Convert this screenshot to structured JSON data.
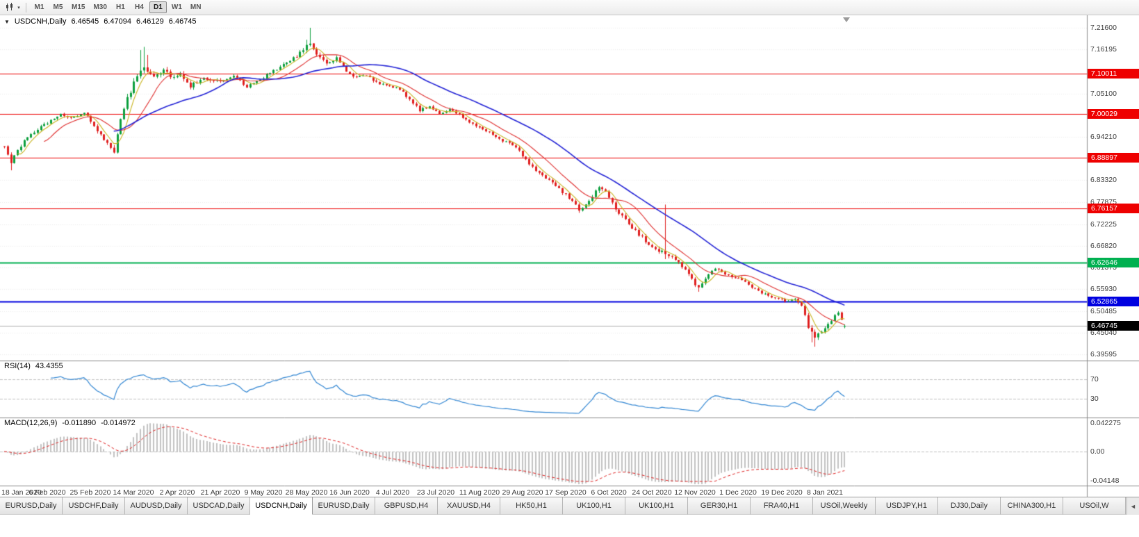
{
  "toolbar": {
    "timeframes": [
      "M1",
      "M5",
      "M15",
      "M30",
      "H1",
      "H4",
      "D1",
      "W1",
      "MN"
    ],
    "active_timeframe": "D1",
    "dropdown_icon": "▾"
  },
  "tabs": {
    "items": [
      "EURUSD,Daily",
      "USDCHF,Daily",
      "AUDUSD,Daily",
      "USDCAD,Daily",
      "USDCNH,Daily",
      "EURUSD,Daily",
      "GBPUSD,H4",
      "XAUUSD,H4",
      "HK50,H1",
      "UK100,H1",
      "UK100,H1",
      "GER30,H1",
      "FRA40,H1",
      "USOil,Weekly",
      "USDJPY,H1",
      "DJ30,Daily",
      "CHINA300,H1",
      "USOil,W"
    ],
    "active_index": 4,
    "scroll_left_icon": "◄"
  },
  "chart_data": {
    "type": "candlestick",
    "symbol": "USDCNH",
    "timeframe": "Daily",
    "title": {
      "collapse_icon": "▼",
      "symbol_label": "USDCNH,Daily",
      "open": "6.46545",
      "high": "6.47094",
      "low": "6.46129",
      "close": "6.46745"
    },
    "bars": 254,
    "ylim": [
      6.3802,
      7.2474
    ],
    "y_ticks": [
      "7.21600",
      "7.16195",
      "7.05100",
      "6.94210",
      "6.83320",
      "6.77875",
      "6.72225",
      "6.66820",
      "6.61375",
      "6.55930",
      "6.50485",
      "6.45040",
      "6.39595"
    ],
    "x_ticks": [
      "18 Jan 2020",
      "6 Feb 2020",
      "25 Feb 2020",
      "14 Mar 2020",
      "2 Apr 2020",
      "21 Apr 2020",
      "9 May 2020",
      "28 May 2020",
      "16 Jun 2020",
      "4 Jul 2020",
      "23 Jul 2020",
      "11 Aug 2020",
      "29 Aug 2020",
      "17 Sep 2020",
      "6 Oct 2020",
      "24 Oct 2020",
      "12 Nov 2020",
      "1 Dec 2020",
      "19 Dec 2020",
      "8 Jan 2021"
    ],
    "x_tick_indices": [
      0,
      13,
      26,
      39,
      52,
      65,
      78,
      91,
      104,
      117,
      130,
      143,
      156,
      169,
      182,
      195,
      208,
      221,
      234,
      247
    ],
    "hlines": [
      {
        "label": "7.10011",
        "value": 7.10011,
        "color": "#ee0000",
        "width": 1
      },
      {
        "label": "7.00029",
        "value": 7.00029,
        "color": "#ee0000",
        "width": 1
      },
      {
        "label": "6.88897",
        "value": 6.88897,
        "color": "#ee0000",
        "width": 1
      },
      {
        "label": "6.76157",
        "value": 6.76157,
        "color": "#ee0000",
        "width": 1
      },
      {
        "label": "6.62646",
        "value": 6.62646,
        "color": "#00b050",
        "width": 2
      },
      {
        "label": "6.52865",
        "value": 6.52865,
        "color": "#0000e0",
        "width": 2
      }
    ],
    "current_price": {
      "label": "6.46745",
      "value": 6.46745
    },
    "last_ohlc": [
      6.46545,
      6.47094,
      6.46129,
      6.46745
    ],
    "close_anchors": [
      [
        0,
        6.915
      ],
      [
        2,
        6.878
      ],
      [
        6,
        6.935
      ],
      [
        10,
        6.962
      ],
      [
        13,
        6.978
      ],
      [
        17,
        7.0
      ],
      [
        20,
        6.988
      ],
      [
        24,
        7.003
      ],
      [
        26,
        6.983
      ],
      [
        30,
        6.934
      ],
      [
        33,
        6.908
      ],
      [
        35,
        6.992
      ],
      [
        38,
        7.058
      ],
      [
        40,
        7.094
      ],
      [
        42,
        7.118
      ],
      [
        45,
        7.094
      ],
      [
        48,
        7.113
      ],
      [
        51,
        7.089
      ],
      [
        53,
        7.099
      ],
      [
        56,
        7.069
      ],
      [
        60,
        7.089
      ],
      [
        65,
        7.083
      ],
      [
        69,
        7.096
      ],
      [
        73,
        7.069
      ],
      [
        78,
        7.092
      ],
      [
        82,
        7.112
      ],
      [
        86,
        7.132
      ],
      [
        89,
        7.152
      ],
      [
        92,
        7.178
      ],
      [
        94,
        7.153
      ],
      [
        97,
        7.128
      ],
      [
        100,
        7.139
      ],
      [
        103,
        7.109
      ],
      [
        106,
        7.089
      ],
      [
        109,
        7.099
      ],
      [
        112,
        7.079
      ],
      [
        116,
        7.069
      ],
      [
        119,
        7.063
      ],
      [
        122,
        7.036
      ],
      [
        125,
        7.009
      ],
      [
        128,
        7.019
      ],
      [
        131,
        6.999
      ],
      [
        134,
        7.013
      ],
      [
        137,
        6.997
      ],
      [
        140,
        6.979
      ],
      [
        144,
        6.959
      ],
      [
        147,
        6.949
      ],
      [
        150,
        6.933
      ],
      [
        153,
        6.923
      ],
      [
        157,
        6.886
      ],
      [
        160,
        6.853
      ],
      [
        163,
        6.839
      ],
      [
        166,
        6.819
      ],
      [
        170,
        6.789
      ],
      [
        173,
        6.759
      ],
      [
        176,
        6.779
      ],
      [
        179,
        6.819
      ],
      [
        182,
        6.793
      ],
      [
        184,
        6.763
      ],
      [
        187,
        6.733
      ],
      [
        190,
        6.706
      ],
      [
        193,
        6.679
      ],
      [
        196,
        6.659
      ],
      [
        199,
        6.649
      ],
      [
        202,
        6.634
      ],
      [
        205,
        6.609
      ],
      [
        208,
        6.573
      ],
      [
        209,
        6.566
      ],
      [
        211,
        6.589
      ],
      [
        214,
        6.609
      ],
      [
        217,
        6.599
      ],
      [
        220,
        6.589
      ],
      [
        223,
        6.579
      ],
      [
        226,
        6.559
      ],
      [
        229,
        6.546
      ],
      [
        232,
        6.539
      ],
      [
        235,
        6.529
      ],
      [
        238,
        6.533
      ],
      [
        240,
        6.519
      ],
      [
        242,
        6.463
      ],
      [
        244,
        6.439
      ],
      [
        246,
        6.456
      ],
      [
        248,
        6.473
      ],
      [
        250,
        6.492
      ],
      [
        251,
        6.498
      ],
      [
        253,
        6.46745
      ]
    ],
    "vol_anchors": [
      [
        0,
        1.3
      ],
      [
        25,
        1.0
      ],
      [
        33,
        1.8
      ],
      [
        40,
        2.2
      ],
      [
        55,
        1.5
      ],
      [
        70,
        1.0
      ],
      [
        85,
        1.3
      ],
      [
        92,
        1.7
      ],
      [
        100,
        1.1
      ],
      [
        140,
        0.9
      ],
      [
        160,
        1.2
      ],
      [
        180,
        1.4
      ],
      [
        200,
        1.5
      ],
      [
        212,
        1.3
      ],
      [
        235,
        0.9
      ],
      [
        242,
        1.6
      ],
      [
        248,
        1.2
      ],
      [
        253,
        0.8
      ]
    ],
    "wick_overrides": {
      "2": {
        "low": 6.858
      },
      "41": {
        "high": 7.16
      },
      "42": {
        "high": 7.168
      },
      "43": {
        "high": 7.148
      },
      "91": {
        "high": 7.186
      },
      "92": {
        "high": 7.216
      },
      "93": {
        "high": 7.171
      },
      "199": {
        "high": 6.772,
        "low": 6.635
      },
      "209": {
        "low": 6.553
      },
      "243": {
        "low": 6.426
      },
      "244": {
        "low": 6.415
      },
      "245": {
        "low": 6.432
      }
    },
    "moving_averages": [
      {
        "period": 5,
        "color": "#c9b520"
      },
      {
        "period": 13,
        "color": "#e03030"
      },
      {
        "period": 34,
        "color": "#2323d6"
      }
    ],
    "colors": {
      "up": "#0da03e",
      "down": "#e01f1f",
      "grid": "#ececec",
      "price_line": "#b0b0b0",
      "rsi": "#3186d3",
      "macd_hist": "#c2c2c2",
      "macd_signal": "#e02020",
      "separator": "#8a8a8a"
    },
    "indicators": {
      "rsi": {
        "title": "RSI(14)",
        "value": "43.4355",
        "period": 14,
        "levels": [
          {
            "text": "70",
            "value": 70
          },
          {
            "text": "30",
            "value": 30
          }
        ]
      },
      "macd": {
        "title": "MACD(12,26,9)",
        "value_main": "-0.011890",
        "value_signal": "-0.014972",
        "scale": [
          {
            "text": "0.042275",
            "value": 0.042275
          },
          {
            "text": "0.00",
            "value": 0
          },
          {
            "text": "-0.04148",
            "value": -0.04148
          }
        ]
      }
    }
  }
}
